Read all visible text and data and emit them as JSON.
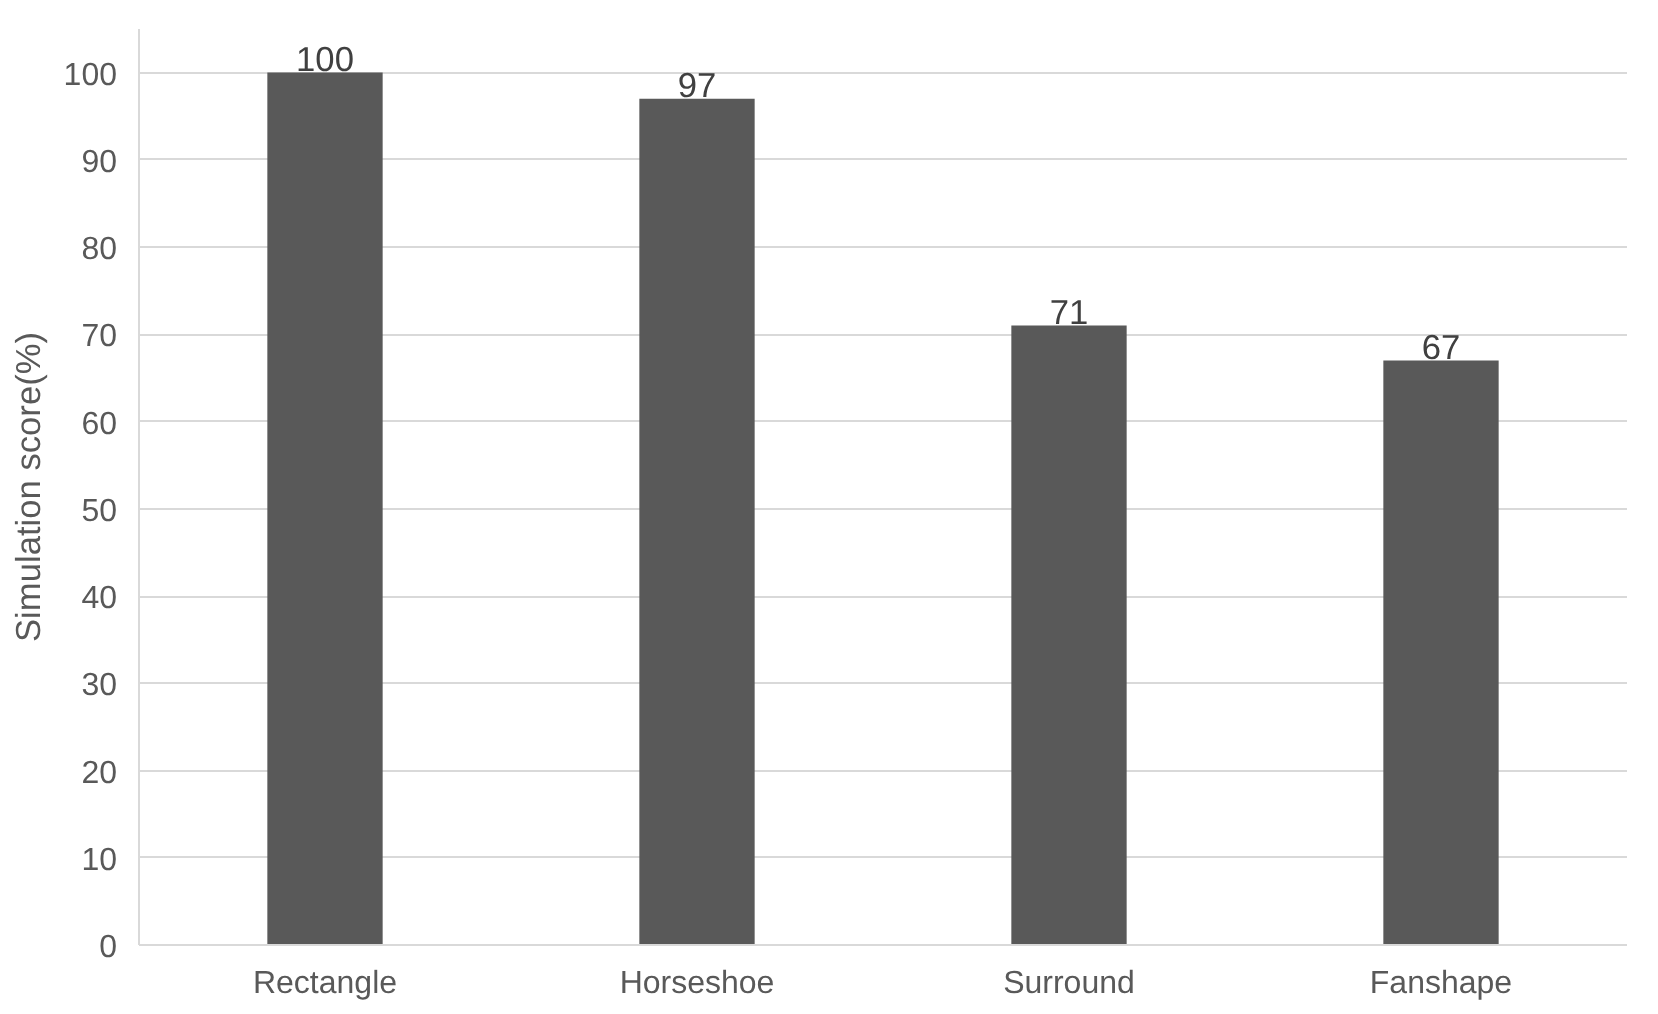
{
  "chart_data": {
    "type": "bar",
    "ylabel": "Simulation score(%)",
    "categories": [
      "Rectangle",
      "Horseshoe",
      "Surround",
      "Fanshape"
    ],
    "values": [
      100,
      97,
      71,
      67
    ],
    "color": "#595959",
    "ylim": [
      0,
      105
    ],
    "yticks": [
      0,
      10,
      20,
      30,
      40,
      50,
      60,
      70,
      80,
      90,
      100
    ],
    "grid": "y",
    "data_labels": true
  }
}
